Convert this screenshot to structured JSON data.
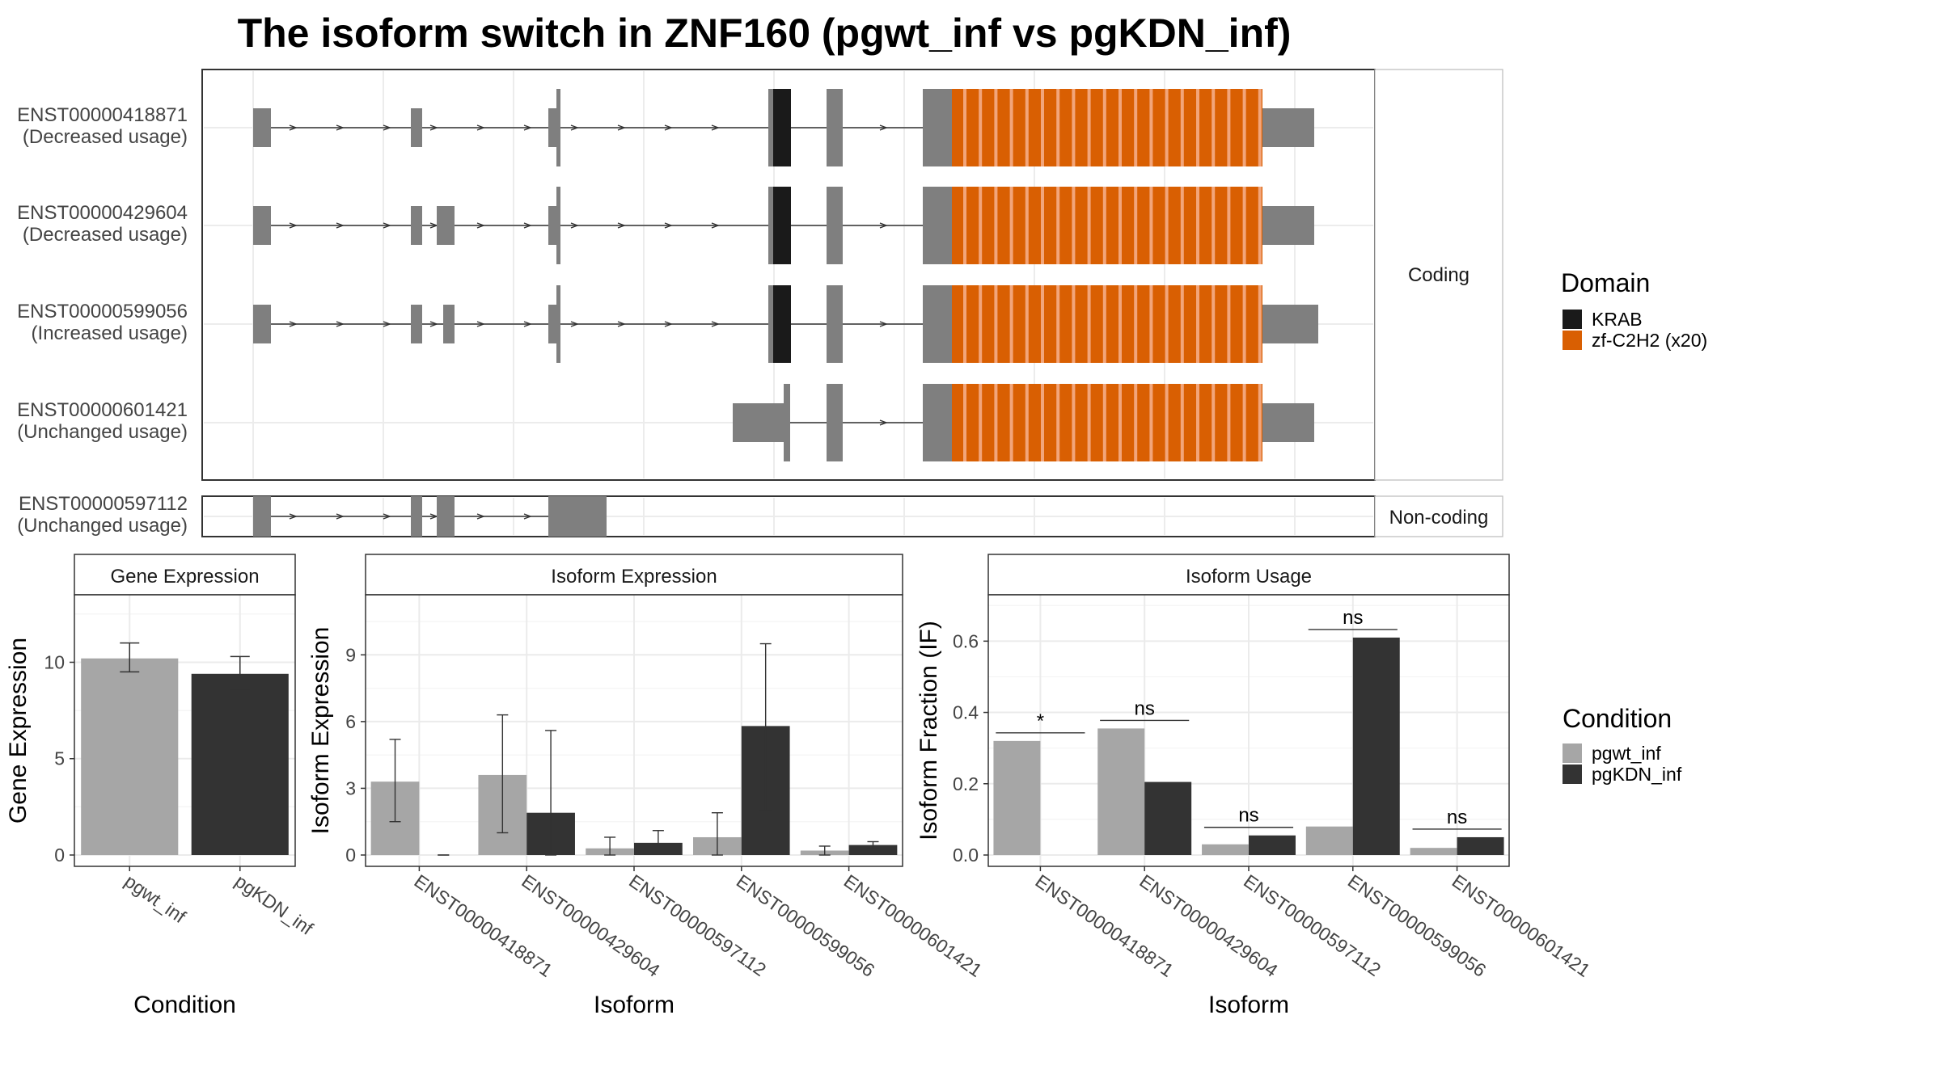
{
  "title": "The isoform switch in ZNF160 (pgwt_inf vs pgKDN_inf)",
  "structure": {
    "facets": [
      "Coding",
      "Non-coding"
    ],
    "coding_transcripts": [
      {
        "id": "ENST00000418871",
        "usage": "(Decreased usage)"
      },
      {
        "id": "ENST00000429604",
        "usage": "(Decreased usage)"
      },
      {
        "id": "ENST00000599056",
        "usage": "(Increased usage)"
      },
      {
        "id": "ENST00000601421",
        "usage": "(Unchanged usage)"
      }
    ],
    "noncoding_transcripts": [
      {
        "id": "ENST00000597112",
        "usage": "(Unchanged usage)"
      }
    ],
    "domain_legend": {
      "title": "Domain",
      "items": [
        {
          "label": "KRAB",
          "color": "#1a1a1a"
        },
        {
          "label": "zf-C2H2 (x20)",
          "color": "#d95f02"
        }
      ]
    },
    "colors": {
      "exon": "#7f7f7f",
      "krab": "#1a1a1a",
      "zf": "#d95f02",
      "zf_stripe": "#f2a57a"
    }
  },
  "condition_legend": {
    "title": "Condition",
    "items": [
      {
        "label": "pgwt_inf",
        "color": "#a6a6a6"
      },
      {
        "label": "pgKDN_inf",
        "color": "#333333"
      }
    ]
  },
  "chart_data": [
    {
      "type": "bar",
      "panel": "Gene Expression",
      "xlabel": "Condition",
      "ylabel": "Gene Expression",
      "ylim": [
        0,
        13.5
      ],
      "yticks": [
        0,
        5,
        10
      ],
      "categories": [
        "pgwt_inf",
        "pgKDN_inf"
      ],
      "values": [
        10.2,
        9.4
      ],
      "error": [
        [
          9.5,
          11.0
        ],
        [
          8.6,
          10.3
        ]
      ],
      "colors": [
        "#a6a6a6",
        "#333333"
      ]
    },
    {
      "type": "bar",
      "panel": "Isoform Expression",
      "xlabel": "Isoform",
      "ylabel": "Isoform Expression",
      "ylim": [
        0,
        11.7
      ],
      "yticks": [
        0,
        3,
        6,
        9
      ],
      "categories": [
        "ENST00000418871",
        "ENST00000429604",
        "ENST00000597112",
        "ENST00000599056",
        "ENST00000601421"
      ],
      "series": [
        {
          "name": "pgwt_inf",
          "values": [
            3.3,
            3.6,
            0.3,
            0.8,
            0.2
          ],
          "error": [
            [
              1.5,
              5.2
            ],
            [
              1.0,
              6.3
            ],
            [
              0.0,
              0.8
            ],
            [
              0.0,
              1.9
            ],
            [
              0.0,
              0.4
            ]
          ]
        },
        {
          "name": "pgKDN_inf",
          "values": [
            0.0,
            1.9,
            0.55,
            5.8,
            0.45
          ],
          "error": [
            [
              0.0,
              0.0
            ],
            [
              0.0,
              5.6
            ],
            [
              0.1,
              1.1
            ],
            [
              2.0,
              9.5
            ],
            [
              0.3,
              0.6
            ]
          ]
        }
      ]
    },
    {
      "type": "bar",
      "panel": "Isoform Usage",
      "xlabel": "Isoform",
      "ylabel": "Isoform Fraction (IF)",
      "ylim": [
        0,
        0.73
      ],
      "yticks": [
        0.0,
        0.2,
        0.4,
        0.6
      ],
      "yticklabels": [
        "0.0",
        "0.2",
        "0.4",
        "0.6"
      ],
      "categories": [
        "ENST00000418871",
        "ENST00000429604",
        "ENST00000597112",
        "ENST00000599056",
        "ENST00000601421"
      ],
      "series": [
        {
          "name": "pgwt_inf",
          "values": [
            0.32,
            0.355,
            0.03,
            0.08,
            0.02
          ]
        },
        {
          "name": "pgKDN_inf",
          "values": [
            0.0,
            0.205,
            0.055,
            0.61,
            0.05
          ]
        }
      ],
      "significance": [
        "*",
        "ns",
        "ns",
        "ns",
        "ns"
      ]
    }
  ]
}
